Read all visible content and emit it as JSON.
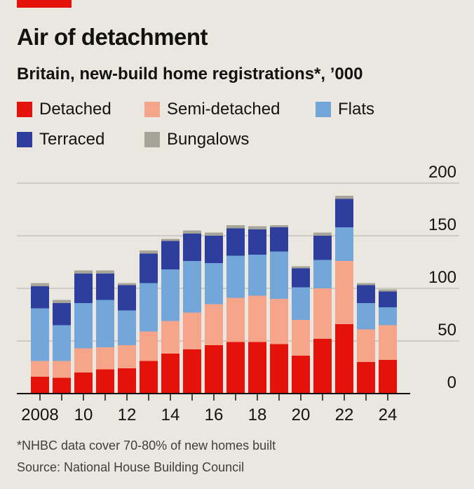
{
  "header": {
    "title": "Air of detachment",
    "subtitle": "Britain, new-build home registrations*, ’000"
  },
  "footer": {
    "footnote": "*NHBC data cover 70-80% of new homes built",
    "source": "Source: National House Building Council"
  },
  "colors": {
    "background": "#e9e7df",
    "accent": "#e3120b",
    "detached": "#e3120b",
    "semi": "#f6a58a",
    "flats": "#73a6d9",
    "terraced": "#2e3e9c",
    "bungalows": "#a6a399",
    "gridline": "#bdbbb3",
    "baseline": "#121212"
  },
  "legend": [
    {
      "key": "detached",
      "label": "Detached"
    },
    {
      "key": "semi",
      "label": "Semi-detached"
    },
    {
      "key": "flats",
      "label": "Flats"
    },
    {
      "key": "terraced",
      "label": "Terraced"
    },
    {
      "key": "bungalows",
      "label": "Bungalows"
    }
  ],
  "chart_data": {
    "type": "bar",
    "stacked": true,
    "title": "Air of detachment",
    "subtitle": "Britain, new-build home registrations*, ’000",
    "years": [
      2008,
      2009,
      2010,
      2011,
      2012,
      2013,
      2014,
      2015,
      2016,
      2017,
      2018,
      2019,
      2020,
      2021,
      2022,
      2023,
      2024
    ],
    "xtick_labels": [
      "2008",
      "",
      "10",
      "",
      "12",
      "",
      "14",
      "",
      "16",
      "",
      "18",
      "",
      "20",
      "",
      "22",
      "",
      "24"
    ],
    "yticks": [
      0,
      50,
      100,
      150,
      200
    ],
    "ylim": [
      0,
      200
    ],
    "grid": true,
    "y_axis_position": "right",
    "legend_position": "top",
    "series": [
      {
        "key": "detached",
        "name": "Detached",
        "values": [
          16,
          15,
          20,
          23,
          24,
          31,
          38,
          42,
          46,
          49,
          49,
          47,
          36,
          52,
          66,
          30,
          32
        ]
      },
      {
        "key": "semi",
        "name": "Semi-detached",
        "values": [
          15,
          16,
          23,
          21,
          22,
          28,
          31,
          35,
          39,
          42,
          44,
          43,
          34,
          48,
          60,
          31,
          33
        ]
      },
      {
        "key": "flats",
        "name": "Flats",
        "values": [
          50,
          34,
          43,
          45,
          33,
          46,
          49,
          49,
          39,
          40,
          39,
          45,
          31,
          27,
          32,
          25,
          17
        ]
      },
      {
        "key": "terraced",
        "name": "Terraced",
        "values": [
          21,
          21,
          28,
          25,
          24,
          28,
          27,
          26,
          26,
          26,
          24,
          23,
          18,
          23,
          27,
          17,
          15
        ]
      },
      {
        "key": "bungalows",
        "name": "Bungalows",
        "values": [
          3,
          3,
          3,
          3,
          2,
          3,
          2,
          3,
          3,
          3,
          3,
          2,
          2,
          3,
          3,
          2,
          2
        ]
      }
    ]
  }
}
